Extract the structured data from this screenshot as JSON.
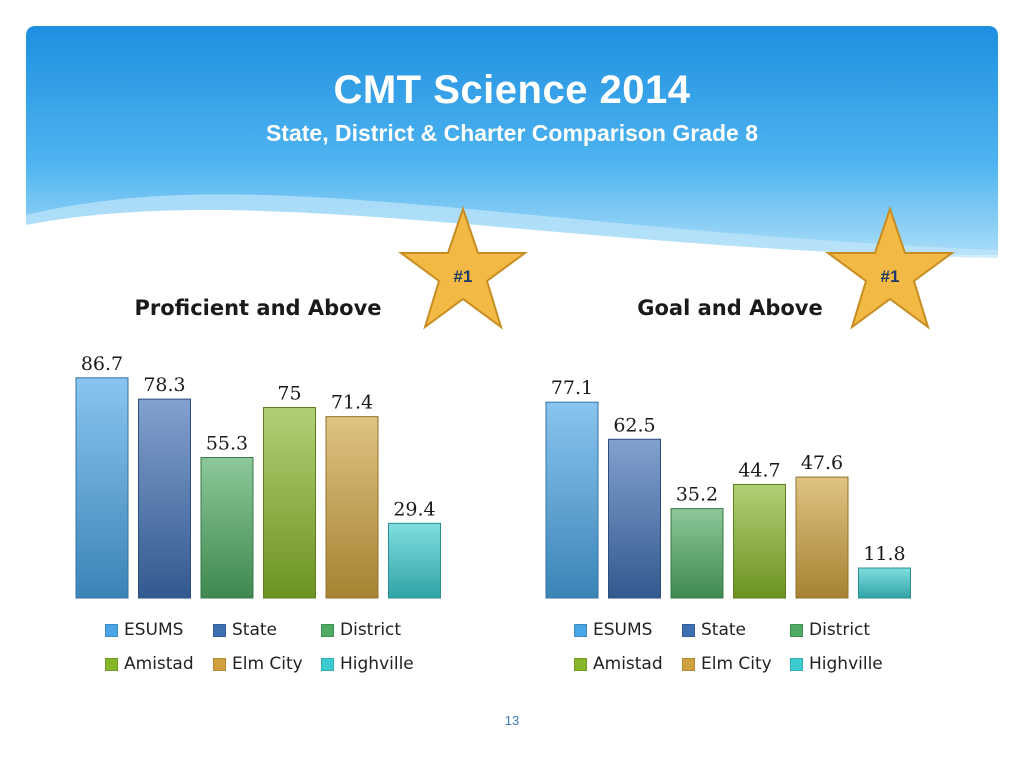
{
  "slide": {
    "title": "CMT Science 2014",
    "subtitle": "State, District & Charter Comparison Grade 8",
    "page_number": "13",
    "colors": {
      "header_light": "#8fd0f5",
      "header_dark": "#1e8fe0"
    }
  },
  "badges": [
    {
      "label": "#1",
      "icon": "gold-star-icon",
      "color": "#f0b43c"
    },
    {
      "label": "#1",
      "icon": "gold-star-icon",
      "color": "#f0b43c"
    }
  ],
  "legend": [
    "ESUMS",
    "State",
    "District",
    "Amistad",
    "Elm City",
    "Highville"
  ],
  "series_colors": {
    "ESUMS": "#4aa5e6",
    "State": "#3f6fb3",
    "District": "#4faa64",
    "Amistad": "#87b62a",
    "Elm City": "#d0a23f",
    "Highville": "#3cccd0"
  },
  "chart_data": [
    {
      "type": "bar",
      "title": "Proficient and Above",
      "categories": [
        "ESUMS",
        "State",
        "District",
        "Amistad",
        "Elm City",
        "Highville"
      ],
      "values": [
        86.7,
        78.3,
        55.3,
        75,
        71.4,
        29.4
      ],
      "value_labels": [
        "86.7",
        "78.3",
        "55.3",
        "75",
        "71.4",
        "29.4"
      ],
      "ylim": [
        0,
        100
      ],
      "grid": false,
      "legend_position": "bottom"
    },
    {
      "type": "bar",
      "title": "Goal and Above",
      "categories": [
        "ESUMS",
        "State",
        "District",
        "Amistad",
        "Elm City",
        "Highville"
      ],
      "values": [
        77.1,
        62.5,
        35.2,
        44.7,
        47.6,
        11.8
      ],
      "value_labels": [
        "77.1",
        "62.5",
        "35.2",
        "44.7",
        "47.6",
        "11.8"
      ],
      "ylim": [
        0,
        100
      ],
      "grid": false,
      "legend_position": "bottom"
    }
  ]
}
